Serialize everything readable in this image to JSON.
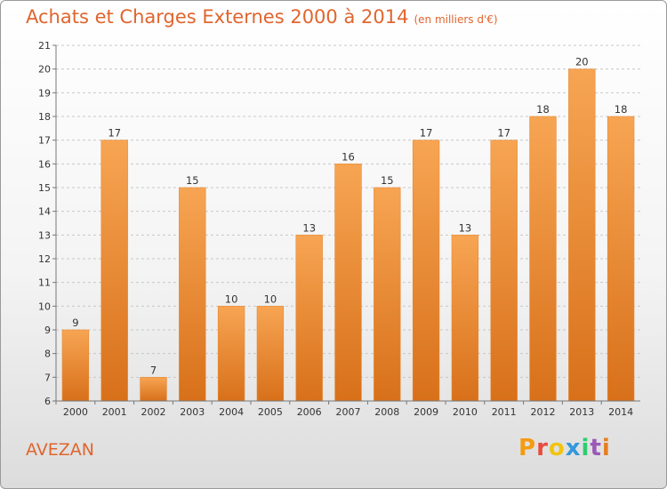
{
  "header": {
    "title": "Achats et Charges Externes 2000 à 2014",
    "subtitle": "(en milliers d'€)"
  },
  "footer": {
    "commune": "AVEZAN",
    "logo_text": "Proxiti",
    "logo_colors": [
      "#f39c12",
      "#e74c3c",
      "#f1c40f",
      "#3498db",
      "#2ecc71",
      "#9b59b6",
      "#e67e22"
    ]
  },
  "chart_data": {
    "type": "bar",
    "title": "Achats et Charges Externes 2000 à 2014",
    "subtitle": "(en milliers d'€)",
    "xlabel": "",
    "ylabel": "",
    "categories": [
      "2000",
      "2001",
      "2002",
      "2003",
      "2004",
      "2005",
      "2006",
      "2007",
      "2008",
      "2009",
      "2010",
      "2011",
      "2012",
      "2013",
      "2014"
    ],
    "values": [
      9,
      17,
      7,
      15,
      10,
      10,
      13,
      16,
      15,
      17,
      13,
      17,
      18,
      20,
      18
    ],
    "ylim": [
      6,
      21
    ],
    "yticks": [
      6,
      7,
      8,
      9,
      10,
      11,
      12,
      13,
      14,
      15,
      16,
      17,
      18,
      19,
      20,
      21
    ],
    "grid": "horizontal-dashed",
    "legend": "none",
    "bar_color": "#ef8a2e"
  }
}
